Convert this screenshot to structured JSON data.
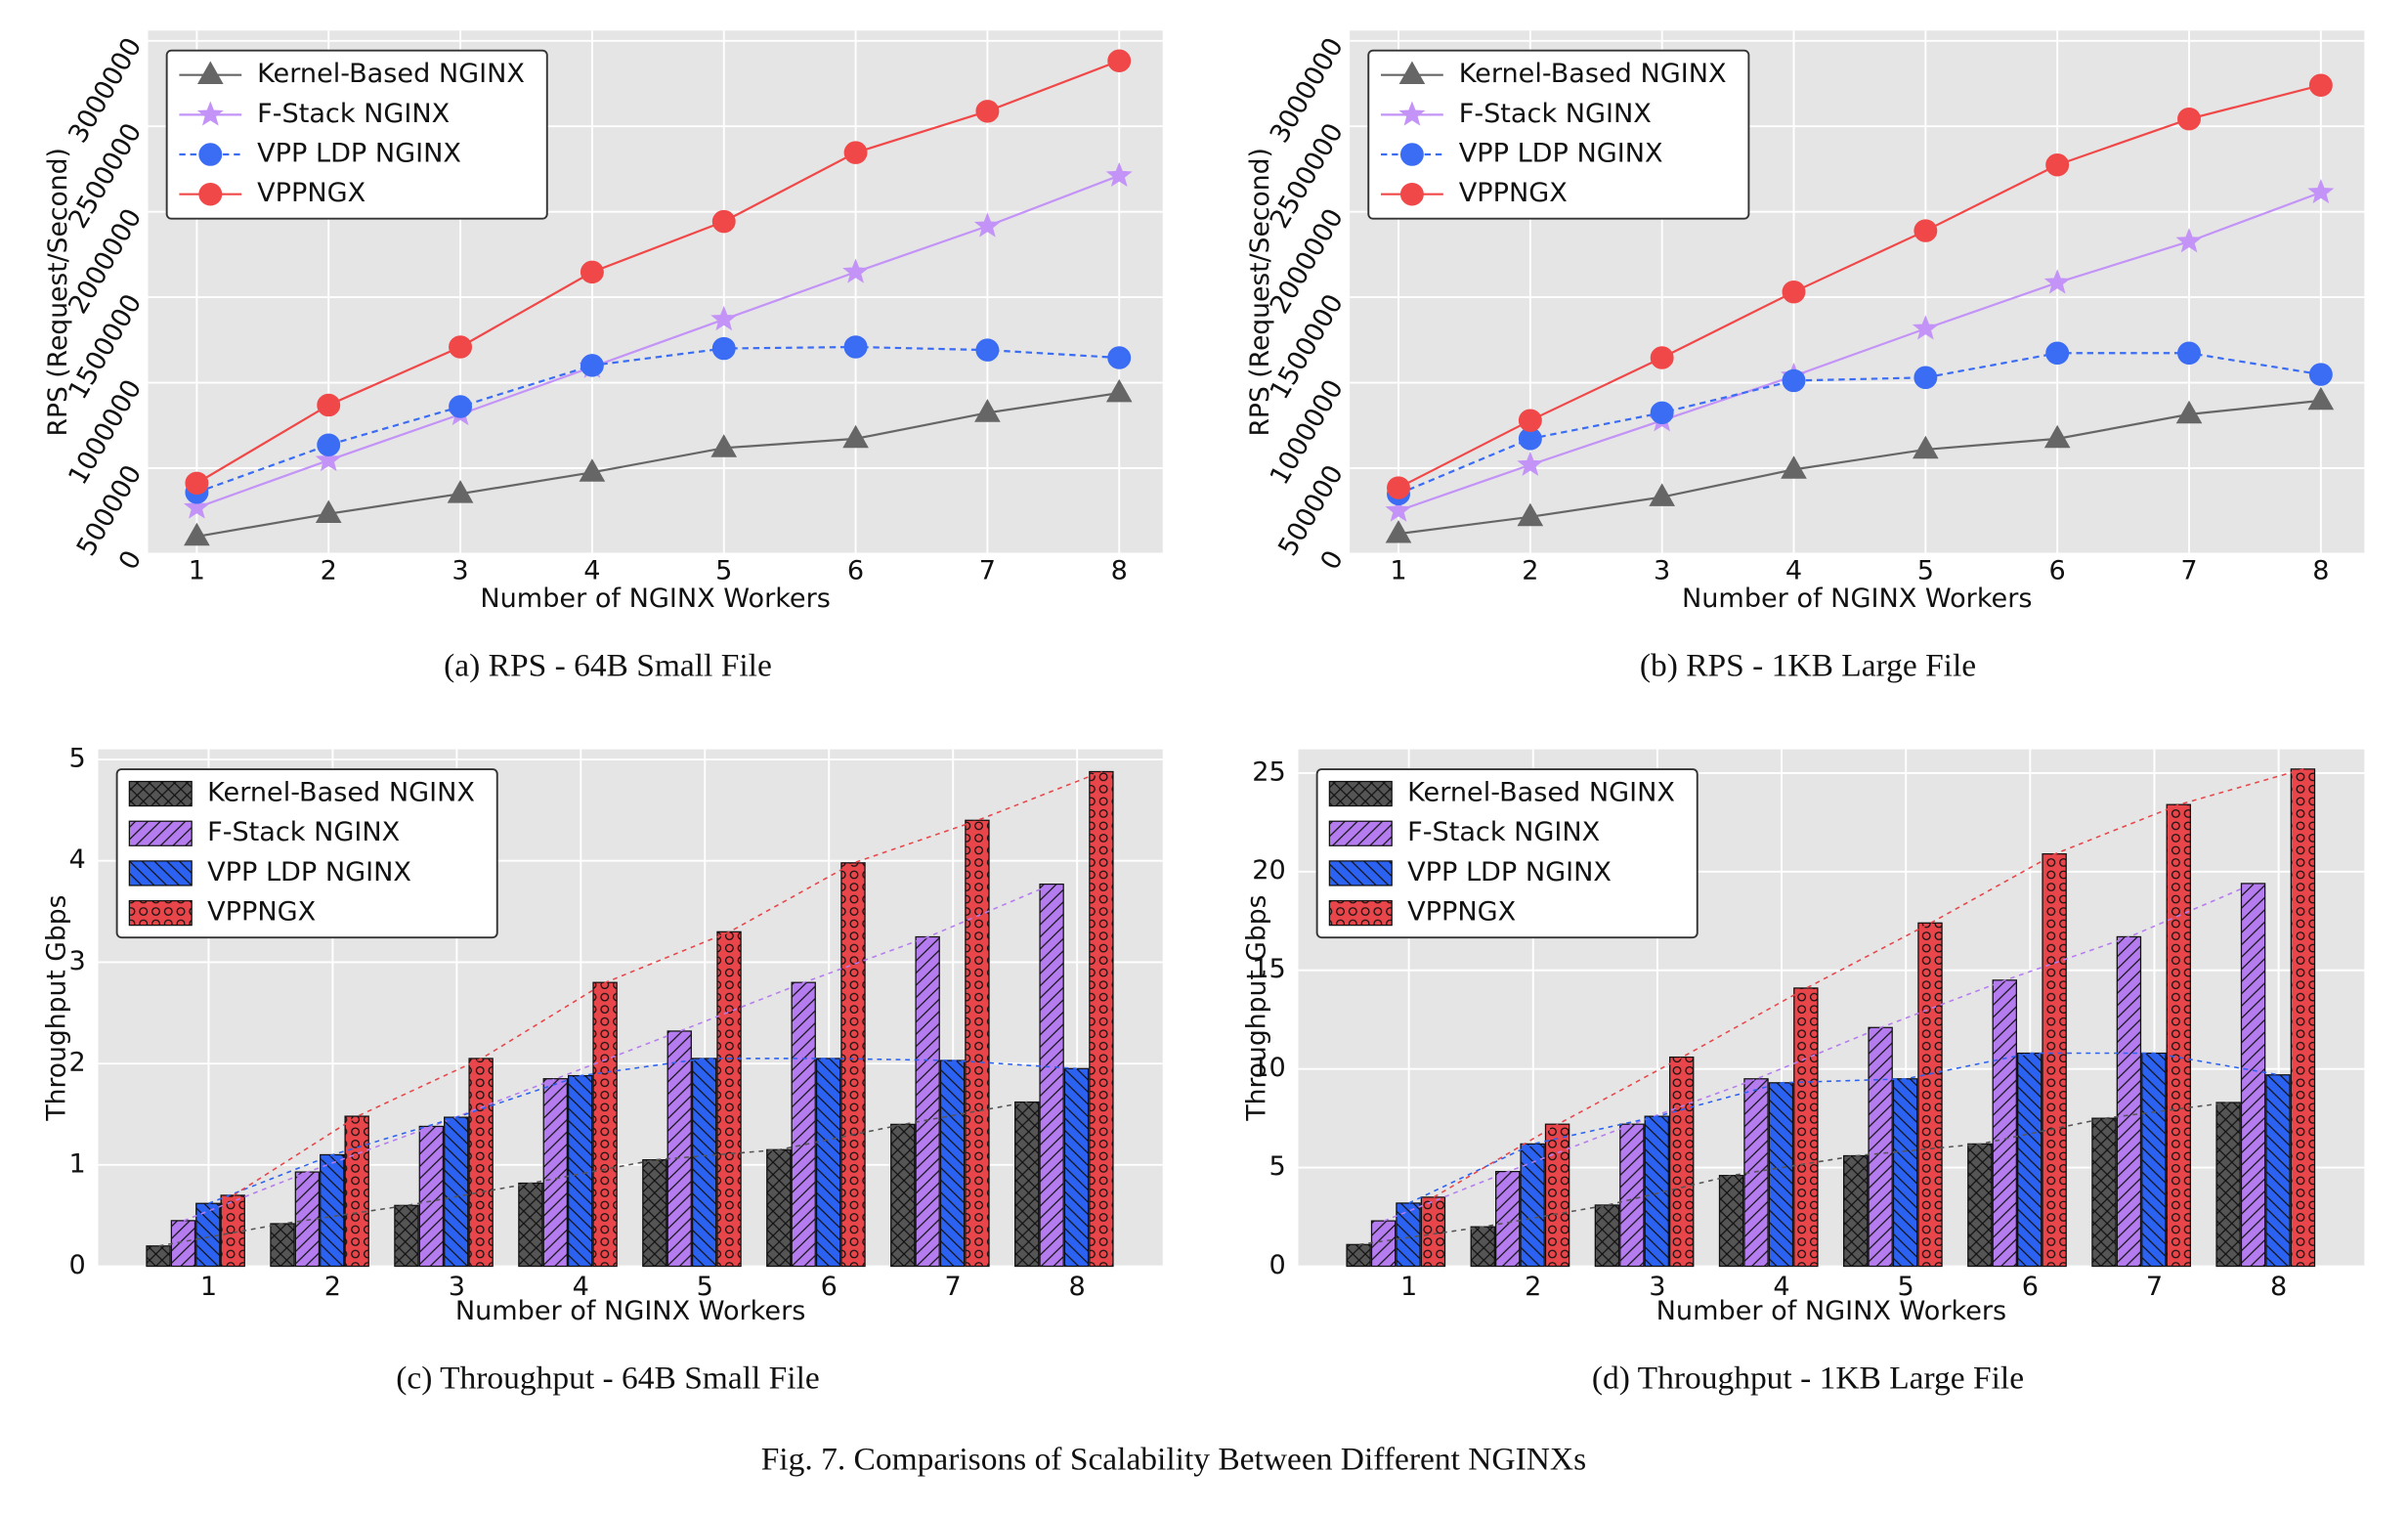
{
  "chart_data": [
    {
      "type": "line",
      "caption": "(a) RPS - 64B Small File",
      "xlabel": "Number of NGINX Workers",
      "ylabel": "RPS (Request/Second)",
      "x": [
        1,
        2,
        3,
        4,
        5,
        6,
        7,
        8
      ],
      "xlim": [
        0.63,
        8.33
      ],
      "xticks": [
        1,
        2,
        3,
        4,
        5,
        6,
        7,
        8
      ],
      "ylim": [
        0,
        3060000
      ],
      "yticks": [
        0,
        500000,
        1000000,
        1500000,
        2000000,
        2500000,
        3000000
      ],
      "grid": true,
      "legend": "upper left",
      "series": [
        {
          "name": "Kernel-Based NGINX",
          "color": "#666666",
          "marker": "triangle",
          "linestyle": "solid",
          "values": [
            100000,
            233000,
            350000,
            475000,
            618000,
            672000,
            824000,
            940000
          ]
        },
        {
          "name": "F-Stack NGINX",
          "color": "#c393f7",
          "marker": "star",
          "linestyle": "solid",
          "values": [
            269000,
            546000,
            815000,
            1092000,
            1370000,
            1647000,
            1916000,
            2211000
          ]
        },
        {
          "name": "VPP LDP NGINX",
          "color": "#3a6cf4",
          "marker": "circle",
          "linestyle": "dashed",
          "values": [
            358000,
            636000,
            860000,
            1101000,
            1200000,
            1209000,
            1191000,
            1146000
          ]
        },
        {
          "name": "VPPNGX",
          "color": "#f04848",
          "marker": "circle",
          "linestyle": "solid",
          "values": [
            412000,
            869000,
            1209000,
            1647000,
            1943000,
            2346000,
            2588000,
            2883000
          ]
        }
      ]
    },
    {
      "type": "line",
      "caption": "(b) RPS - 1KB Large File",
      "xlabel": "Number of NGINX Workers",
      "ylabel": "RPS (Request/Second)",
      "x": [
        1,
        2,
        3,
        4,
        5,
        6,
        7,
        8
      ],
      "xlim": [
        0.63,
        8.33
      ],
      "xticks": [
        1,
        2,
        3,
        4,
        5,
        6,
        7,
        8
      ],
      "ylim": [
        0,
        3060000
      ],
      "yticks": [
        0,
        500000,
        1000000,
        1500000,
        2000000,
        2500000,
        3000000
      ],
      "grid": true,
      "legend": "upper left",
      "series": [
        {
          "name": "Kernel-Based NGINX",
          "color": "#666666",
          "marker": "triangle",
          "linestyle": "solid",
          "values": [
            116000,
            215000,
            331000,
            492000,
            609000,
            672000,
            815000,
            895000
          ]
        },
        {
          "name": "F-Stack NGINX",
          "color": "#c393f7",
          "marker": "star",
          "linestyle": "solid",
          "values": [
            251000,
            519000,
            779000,
            1039000,
            1316000,
            1585000,
            1826000,
            2113000
          ]
        },
        {
          "name": "VPP LDP NGINX",
          "color": "#3a6cf4",
          "marker": "circle",
          "linestyle": "dashed",
          "values": [
            349000,
            672000,
            824000,
            1012000,
            1030000,
            1173000,
            1173000,
            1048000
          ]
        },
        {
          "name": "VPPNGX",
          "color": "#f04848",
          "marker": "circle",
          "linestyle": "solid",
          "values": [
            385000,
            779000,
            1146000,
            1531000,
            1889000,
            2274000,
            2543000,
            2740000
          ]
        }
      ]
    },
    {
      "type": "bar",
      "caption": "(c) Throughput - 64B Small File",
      "xlabel": "Number of NGINX Workers",
      "ylabel": "Throughput Gbps",
      "categories": [
        "1",
        "2",
        "3",
        "4",
        "5",
        "6",
        "7",
        "8"
      ],
      "ylim": [
        0,
        5.1
      ],
      "yticks": [
        0,
        1,
        2,
        3,
        4,
        5
      ],
      "grid": true,
      "legend": "upper left",
      "trend_lines": true,
      "series": [
        {
          "name": "Kernel-Based NGINX",
          "color": "#555555",
          "hatch": "x",
          "values": [
            0.2,
            0.42,
            0.6,
            0.82,
            1.05,
            1.15,
            1.4,
            1.62
          ]
        },
        {
          "name": "F-Stack NGINX",
          "color": "#b57cf0",
          "hatch": "/",
          "values": [
            0.45,
            0.93,
            1.38,
            1.85,
            2.32,
            2.8,
            3.25,
            3.77
          ]
        },
        {
          "name": "VPP LDP NGINX",
          "color": "#2c62f2",
          "hatch": "\\",
          "values": [
            0.62,
            1.1,
            1.47,
            1.88,
            2.05,
            2.05,
            2.03,
            1.95
          ]
        },
        {
          "name": "VPPNGX",
          "color": "#e8464a",
          "hatch": "o",
          "values": [
            0.7,
            1.48,
            2.05,
            2.8,
            3.3,
            3.98,
            4.4,
            4.88
          ]
        }
      ]
    },
    {
      "type": "bar",
      "caption": "(d) Throughput - 1KB Large File",
      "xlabel": "Number of NGINX Workers",
      "ylabel": "Throughput Gbps",
      "categories": [
        "1",
        "2",
        "3",
        "4",
        "5",
        "6",
        "7",
        "8"
      ],
      "ylim": [
        0,
        26.2
      ],
      "yticks": [
        0,
        5,
        10,
        15,
        20,
        25
      ],
      "grid": true,
      "legend": "upper left",
      "trend_lines": true,
      "series": [
        {
          "name": "Kernel-Based NGINX",
          "color": "#555555",
          "hatch": "x",
          "values": [
            1.1,
            2.0,
            3.1,
            4.6,
            5.6,
            6.2,
            7.5,
            8.3
          ]
        },
        {
          "name": "F-Stack NGINX",
          "color": "#b57cf0",
          "hatch": "/",
          "values": [
            2.3,
            4.8,
            7.2,
            9.5,
            12.1,
            14.5,
            16.7,
            19.4
          ]
        },
        {
          "name": "VPP LDP NGINX",
          "color": "#2c62f2",
          "hatch": "\\",
          "values": [
            3.2,
            6.2,
            7.6,
            9.3,
            9.5,
            10.8,
            10.8,
            9.7
          ]
        },
        {
          "name": "VPPNGX",
          "color": "#e8464a",
          "hatch": "o",
          "values": [
            3.5,
            7.2,
            10.6,
            14.1,
            17.4,
            20.9,
            23.4,
            25.2
          ]
        }
      ]
    }
  ],
  "figure_caption": "Fig. 7.  Comparisons of Scalability Between Different NGINXs"
}
